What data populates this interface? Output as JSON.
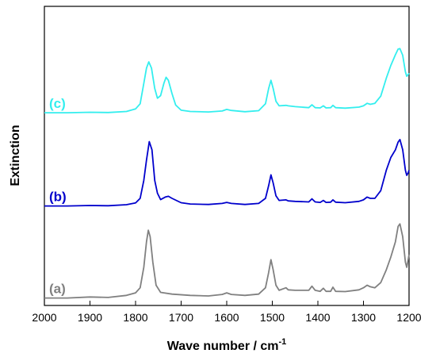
{
  "chart_data": {
    "type": "line",
    "xlabel": "Wave number / cm",
    "xlabel_superscript": "-1",
    "ylabel": "Extinction",
    "xlim": [
      2000,
      1200
    ],
    "ylim": [
      0,
      1
    ],
    "x_ticks": [
      2000,
      1900,
      1800,
      1700,
      1600,
      1500,
      1400,
      1300,
      1200
    ],
    "y_ticks_shown": false,
    "grid": false,
    "series": [
      {
        "name": "(a)",
        "color": "#808080",
        "points": [
          [
            2000,
            0.02
          ],
          [
            1950,
            0.02
          ],
          [
            1900,
            0.024
          ],
          [
            1860,
            0.022
          ],
          [
            1820,
            0.03
          ],
          [
            1800,
            0.04
          ],
          [
            1790,
            0.06
          ],
          [
            1782,
            0.14
          ],
          [
            1776,
            0.24
          ],
          [
            1772,
            0.285
          ],
          [
            1768,
            0.26
          ],
          [
            1762,
            0.16
          ],
          [
            1755,
            0.07
          ],
          [
            1745,
            0.042
          ],
          [
            1720,
            0.035
          ],
          [
            1680,
            0.03
          ],
          [
            1640,
            0.028
          ],
          [
            1610,
            0.034
          ],
          [
            1600,
            0.04
          ],
          [
            1590,
            0.034
          ],
          [
            1560,
            0.03
          ],
          [
            1530,
            0.035
          ],
          [
            1515,
            0.06
          ],
          [
            1508,
            0.12
          ],
          [
            1503,
            0.17
          ],
          [
            1498,
            0.13
          ],
          [
            1492,
            0.07
          ],
          [
            1485,
            0.05
          ],
          [
            1470,
            0.06
          ],
          [
            1465,
            0.052
          ],
          [
            1450,
            0.05
          ],
          [
            1420,
            0.05
          ],
          [
            1413,
            0.066
          ],
          [
            1406,
            0.05
          ],
          [
            1395,
            0.046
          ],
          [
            1388,
            0.058
          ],
          [
            1382,
            0.046
          ],
          [
            1372,
            0.046
          ],
          [
            1367,
            0.062
          ],
          [
            1361,
            0.046
          ],
          [
            1340,
            0.045
          ],
          [
            1310,
            0.052
          ],
          [
            1300,
            0.06
          ],
          [
            1292,
            0.07
          ],
          [
            1285,
            0.064
          ],
          [
            1275,
            0.06
          ],
          [
            1262,
            0.08
          ],
          [
            1250,
            0.13
          ],
          [
            1240,
            0.18
          ],
          [
            1230,
            0.24
          ],
          [
            1224,
            0.3
          ],
          [
            1220,
            0.31
          ],
          [
            1214,
            0.26
          ],
          [
            1208,
            0.16
          ],
          [
            1205,
            0.14
          ],
          [
            1202,
            0.17
          ],
          [
            1200,
            0.19
          ]
        ]
      },
      {
        "name": "(b)",
        "color": "#0000cc",
        "points": [
          [
            2000,
            0.38
          ],
          [
            1950,
            0.38
          ],
          [
            1900,
            0.382
          ],
          [
            1860,
            0.381
          ],
          [
            1820,
            0.385
          ],
          [
            1800,
            0.392
          ],
          [
            1790,
            0.41
          ],
          [
            1782,
            0.48
          ],
          [
            1776,
            0.56
          ],
          [
            1770,
            0.632
          ],
          [
            1764,
            0.6
          ],
          [
            1758,
            0.48
          ],
          [
            1752,
            0.43
          ],
          [
            1745,
            0.405
          ],
          [
            1735,
            0.415
          ],
          [
            1728,
            0.418
          ],
          [
            1720,
            0.41
          ],
          [
            1700,
            0.393
          ],
          [
            1680,
            0.388
          ],
          [
            1640,
            0.386
          ],
          [
            1610,
            0.39
          ],
          [
            1600,
            0.394
          ],
          [
            1590,
            0.39
          ],
          [
            1560,
            0.386
          ],
          [
            1530,
            0.39
          ],
          [
            1515,
            0.41
          ],
          [
            1508,
            0.46
          ],
          [
            1503,
            0.502
          ],
          [
            1498,
            0.47
          ],
          [
            1492,
            0.42
          ],
          [
            1485,
            0.402
          ],
          [
            1470,
            0.404
          ],
          [
            1465,
            0.4
          ],
          [
            1450,
            0.398
          ],
          [
            1420,
            0.396
          ],
          [
            1413,
            0.408
          ],
          [
            1406,
            0.396
          ],
          [
            1395,
            0.394
          ],
          [
            1388,
            0.402
          ],
          [
            1382,
            0.394
          ],
          [
            1372,
            0.395
          ],
          [
            1367,
            0.404
          ],
          [
            1361,
            0.395
          ],
          [
            1340,
            0.393
          ],
          [
            1310,
            0.398
          ],
          [
            1300,
            0.404
          ],
          [
            1292,
            0.415
          ],
          [
            1285,
            0.41
          ],
          [
            1275,
            0.41
          ],
          [
            1262,
            0.44
          ],
          [
            1250,
            0.52
          ],
          [
            1240,
            0.57
          ],
          [
            1230,
            0.6
          ],
          [
            1224,
            0.63
          ],
          [
            1220,
            0.64
          ],
          [
            1214,
            0.6
          ],
          [
            1208,
            0.52
          ],
          [
            1205,
            0.5
          ],
          [
            1202,
            0.51
          ],
          [
            1200,
            0.52
          ]
        ]
      },
      {
        "name": "(c)",
        "color": "#33eeee",
        "points": [
          [
            2000,
            0.745
          ],
          [
            1950,
            0.745
          ],
          [
            1900,
            0.747
          ],
          [
            1860,
            0.746
          ],
          [
            1820,
            0.75
          ],
          [
            1800,
            0.76
          ],
          [
            1790,
            0.78
          ],
          [
            1782,
            0.86
          ],
          [
            1776,
            0.92
          ],
          [
            1771,
            0.944
          ],
          [
            1765,
            0.92
          ],
          [
            1758,
            0.84
          ],
          [
            1752,
            0.802
          ],
          [
            1745,
            0.812
          ],
          [
            1738,
            0.86
          ],
          [
            1733,
            0.884
          ],
          [
            1728,
            0.872
          ],
          [
            1720,
            0.82
          ],
          [
            1712,
            0.775
          ],
          [
            1700,
            0.755
          ],
          [
            1680,
            0.75
          ],
          [
            1640,
            0.748
          ],
          [
            1610,
            0.752
          ],
          [
            1600,
            0.758
          ],
          [
            1590,
            0.754
          ],
          [
            1560,
            0.749
          ],
          [
            1530,
            0.753
          ],
          [
            1515,
            0.78
          ],
          [
            1508,
            0.84
          ],
          [
            1503,
            0.872
          ],
          [
            1498,
            0.84
          ],
          [
            1492,
            0.79
          ],
          [
            1485,
            0.772
          ],
          [
            1470,
            0.774
          ],
          [
            1465,
            0.772
          ],
          [
            1450,
            0.769
          ],
          [
            1420,
            0.765
          ],
          [
            1413,
            0.776
          ],
          [
            1406,
            0.765
          ],
          [
            1395,
            0.764
          ],
          [
            1388,
            0.772
          ],
          [
            1382,
            0.764
          ],
          [
            1372,
            0.765
          ],
          [
            1367,
            0.774
          ],
          [
            1361,
            0.765
          ],
          [
            1340,
            0.763
          ],
          [
            1310,
            0.767
          ],
          [
            1300,
            0.772
          ],
          [
            1292,
            0.782
          ],
          [
            1285,
            0.778
          ],
          [
            1275,
            0.782
          ],
          [
            1262,
            0.81
          ],
          [
            1250,
            0.88
          ],
          [
            1240,
            0.93
          ],
          [
            1230,
            0.972
          ],
          [
            1224,
            0.994
          ],
          [
            1220,
            0.996
          ],
          [
            1214,
            0.97
          ],
          [
            1208,
            0.905
          ],
          [
            1205,
            0.888
          ],
          [
            1202,
            0.894
          ],
          [
            1200,
            0.9
          ]
        ]
      }
    ]
  }
}
